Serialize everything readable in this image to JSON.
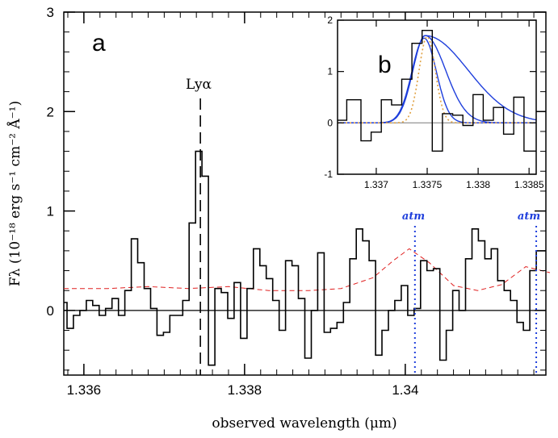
{
  "chart_data": [
    {
      "type": "line",
      "panel_label": "a",
      "xlabel": "observed wavelength (μm)",
      "ylabel": "Fλ (10⁻¹⁸ erg s⁻¹ cm⁻² Å⁻¹)",
      "xlim": [
        1.33575,
        1.34175
      ],
      "ylim": [
        -0.65,
        3.0
      ],
      "xticks": [
        1.336,
        1.338,
        1.34
      ],
      "xtick_labels": [
        "1.336",
        "1.338",
        "1.34"
      ],
      "yticks": [
        0,
        1,
        2,
        3
      ],
      "ytick_labels": [
        "0",
        "1",
        "2",
        "3"
      ],
      "zero_line": 0,
      "line_marker": {
        "label": "Lyα",
        "x": 1.33745
      },
      "atm_markers": [
        {
          "label": "atm",
          "x": 1.34012
        },
        {
          "label": "atm",
          "x": 1.34163
        }
      ],
      "colors": {
        "spectrum": "#000000",
        "error": "#e02020",
        "atm": "#1f3fdc"
      },
      "series": [
        {
          "style": "step",
          "x": [
            1.33575,
            1.33583,
            1.33591,
            1.33599,
            1.33607,
            1.33615,
            1.33623,
            1.33631,
            1.33639,
            1.33647,
            1.33655,
            1.33663,
            1.33671,
            1.33679,
            1.33687,
            1.33695,
            1.33703,
            1.33711,
            1.33719,
            1.33727,
            1.33735,
            1.33743,
            1.33751,
            1.33759,
            1.33767,
            1.33775,
            1.33783,
            1.33791,
            1.33799,
            1.33807,
            1.33815,
            1.33823,
            1.33831,
            1.33839,
            1.33847,
            1.33855,
            1.33863,
            1.33871,
            1.33879,
            1.33887,
            1.33895,
            1.33903,
            1.33911,
            1.33919,
            1.33927,
            1.33935,
            1.33943,
            1.33951,
            1.33959,
            1.33967,
            1.33975,
            1.33983,
            1.33991,
            1.33999,
            1.34007,
            1.34015,
            1.34023,
            1.34031,
            1.34039,
            1.34047,
            1.34055,
            1.34063,
            1.34071,
            1.34079,
            1.34087,
            1.34095,
            1.34103,
            1.34111,
            1.34119,
            1.34127,
            1.34135,
            1.34143,
            1.34151,
            1.34159,
            1.34167
          ],
          "y": [
            0.08,
            -0.18,
            -0.05,
            0.0,
            0.1,
            0.05,
            -0.05,
            0.02,
            0.12,
            -0.05,
            0.2,
            0.72,
            0.48,
            0.22,
            0.02,
            -0.25,
            -0.22,
            -0.05,
            -0.05,
            0.1,
            0.88,
            1.6,
            1.35,
            -0.55,
            0.22,
            0.18,
            -0.08,
            0.28,
            -0.28,
            0.22,
            0.62,
            0.45,
            0.32,
            0.1,
            -0.2,
            0.5,
            0.45,
            0.12,
            -0.48,
            0.0,
            0.58,
            -0.22,
            -0.18,
            -0.12,
            0.08,
            0.52,
            0.82,
            0.7,
            0.5,
            -0.45,
            -0.2,
            0.0,
            0.1,
            0.25,
            -0.05,
            0.02,
            0.5,
            0.4,
            0.42,
            -0.5,
            -0.2,
            0.2,
            0.0,
            0.52,
            0.82,
            0.7,
            0.52,
            0.62,
            0.3,
            0.2,
            0.1,
            -0.12,
            -0.2,
            0.4,
            0.6
          ]
        },
        {
          "style": "dashed",
          "x": [
            1.33575,
            1.3363,
            1.3368,
            1.3373,
            1.3378,
            1.3383,
            1.3388,
            1.3392,
            1.3396,
            1.33985,
            1.34005,
            1.3403,
            1.3406,
            1.3409,
            1.3412,
            1.3415,
            1.3418
          ],
          "y": [
            0.22,
            0.22,
            0.24,
            0.22,
            0.24,
            0.2,
            0.2,
            0.22,
            0.33,
            0.5,
            0.62,
            0.48,
            0.25,
            0.2,
            0.26,
            0.44,
            0.38
          ]
        }
      ]
    },
    {
      "type": "line",
      "panel_label": "b",
      "xlim": [
        1.33662,
        1.33857
      ],
      "ylim": [
        -1.0,
        2.0
      ],
      "xticks": [
        1.337,
        1.3375,
        1.338,
        1.3385
      ],
      "xtick_labels": [
        "1.337",
        "1.3375",
        "1.338",
        "1.3385"
      ],
      "yticks": [
        -1,
        0,
        1,
        2
      ],
      "ytick_labels": [
        "-1",
        "0",
        "1",
        "2"
      ],
      "series": [
        {
          "style": "step",
          "x": [
            1.33662,
            1.3368,
            1.3369,
            1.337,
            1.3371,
            1.3372,
            1.3373,
            1.3374,
            1.3375,
            1.3376,
            1.3377,
            1.3378,
            1.3379,
            1.338,
            1.3381,
            1.3382,
            1.3383,
            1.3384,
            1.3385
          ],
          "y": [
            0.05,
            0.45,
            -0.35,
            -0.18,
            0.45,
            0.35,
            0.85,
            1.55,
            1.8,
            -0.55,
            0.18,
            0.15,
            -0.05,
            0.55,
            0.05,
            0.3,
            -0.22,
            0.5,
            -0.55
          ]
        },
        {
          "style": "blue",
          "model": "gaussian",
          "amp": 1.65,
          "center": 1.33747,
          "sigma": 0.00012
        },
        {
          "style": "blue",
          "model": "skew",
          "amp": 1.7,
          "center": 1.33748,
          "sigma_left": 0.00012,
          "sigma_right": 0.0002
        },
        {
          "style": "blue",
          "model": "skew",
          "amp": 1.7,
          "center": 1.33748,
          "sigma_left": 0.00012,
          "sigma_right": 0.00042
        },
        {
          "style": "orange-dotted",
          "model": "gaussian",
          "amp": 1.68,
          "center": 1.3375,
          "sigma": 8e-05
        }
      ],
      "colors": {
        "model": "#1f3fdc",
        "intrinsic": "#e0a040",
        "zero": "#888888"
      }
    }
  ]
}
